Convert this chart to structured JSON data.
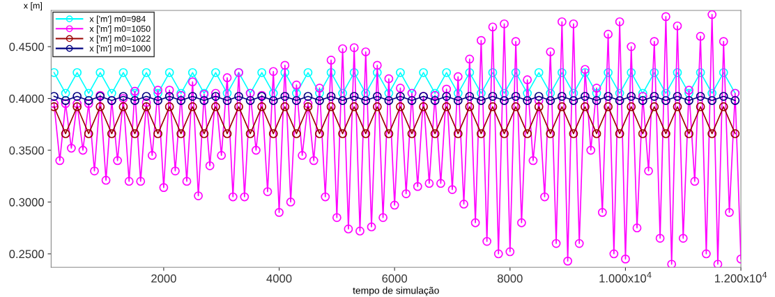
{
  "chart_data": {
    "type": "line",
    "xlabel": "tempo de simulação",
    "ylabel": "x [m]",
    "xlim": [
      50,
      12000
    ],
    "xticks": [
      2000,
      4000,
      6000,
      8000,
      {
        "value": 10000,
        "label": "1.000x10$^{4}$"
      },
      {
        "value": 12000,
        "label": "1.200x10$^{4}$"
      }
    ],
    "ylim": [
      0.237,
      0.485
    ],
    "yticks": [
      {
        "value": 0.25,
        "label": "0.2500"
      },
      {
        "value": 0.3,
        "label": "0.3000"
      },
      {
        "value": 0.35,
        "label": "0.3500"
      },
      {
        "value": 0.4,
        "label": "0.4000"
      },
      {
        "value": 0.45,
        "label": "0.4500"
      }
    ],
    "grid": false,
    "legend": "top left",
    "marker": "circle",
    "line_style": "solid",
    "series": [
      {
        "name": "x ['m'] m0=984",
        "color": "#00ffff",
        "x": [
          100,
          300,
          500,
          700,
          900,
          1100,
          1300,
          1500,
          1700,
          1900,
          2100,
          2300,
          2500,
          2700,
          2900,
          3100,
          3300,
          3500,
          3700,
          3900,
          4100,
          4300,
          4500,
          4700,
          4900,
          5100,
          5300,
          5500,
          5700,
          5900,
          6100,
          6300,
          6500,
          6700,
          6900,
          7100,
          7300,
          7500,
          7700,
          7900,
          8100,
          8300,
          8500,
          8700,
          8900,
          9100,
          9300,
          9500,
          9700,
          9900,
          10100,
          10300,
          10500,
          10700,
          10900,
          11100,
          11300,
          11500,
          11700,
          11900
        ],
        "values": [
          0.425,
          0.405,
          0.425,
          0.405,
          0.425,
          0.405,
          0.425,
          0.405,
          0.425,
          0.405,
          0.425,
          0.405,
          0.425,
          0.405,
          0.425,
          0.405,
          0.425,
          0.405,
          0.425,
          0.405,
          0.425,
          0.405,
          0.425,
          0.405,
          0.425,
          0.405,
          0.425,
          0.405,
          0.425,
          0.405,
          0.425,
          0.405,
          0.425,
          0.405,
          0.425,
          0.405,
          0.425,
          0.405,
          0.425,
          0.405,
          0.425,
          0.405,
          0.425,
          0.405,
          0.425,
          0.405,
          0.425,
          0.405,
          0.425,
          0.405,
          0.425,
          0.405,
          0.425,
          0.405,
          0.425,
          0.405,
          0.425,
          0.405,
          0.425,
          0.405
        ]
      },
      {
        "name": "x ['m'] m0=1050",
        "color": "#ff00ff",
        "x": [
          100,
          200,
          300,
          400,
          500,
          600,
          700,
          800,
          900,
          1000,
          1100,
          1200,
          1300,
          1400,
          1500,
          1600,
          1700,
          1800,
          1900,
          2000,
          2100,
          2200,
          2300,
          2400,
          2500,
          2600,
          2700,
          2800,
          2900,
          3000,
          3100,
          3200,
          3300,
          3400,
          3500,
          3600,
          3700,
          3800,
          3900,
          4000,
          4100,
          4200,
          4300,
          4400,
          4500,
          4600,
          4700,
          4800,
          4900,
          5000,
          5100,
          5200,
          5300,
          5400,
          5500,
          5600,
          5700,
          5800,
          5900,
          6000,
          6100,
          6200,
          6300,
          6400,
          6500,
          6600,
          6700,
          6800,
          6900,
          7000,
          7100,
          7200,
          7300,
          7400,
          7500,
          7600,
          7700,
          7800,
          7900,
          8000,
          8100,
          8200,
          8300,
          8400,
          8500,
          8600,
          8700,
          8800,
          8900,
          9000,
          9100,
          9200,
          9300,
          9400,
          9500,
          9600,
          9700,
          9800,
          9900,
          10000,
          10100,
          10200,
          10300,
          10400,
          10500,
          10600,
          10700,
          10800,
          10900,
          11000,
          11100,
          11200,
          11300,
          11400,
          11500,
          11600,
          11700,
          11800,
          11900,
          12000
        ],
        "values": [
          0.395,
          0.34,
          0.395,
          0.352,
          0.395,
          0.35,
          0.395,
          0.33,
          0.403,
          0.321,
          0.398,
          0.34,
          0.4,
          0.32,
          0.407,
          0.32,
          0.396,
          0.345,
          0.408,
          0.314,
          0.408,
          0.33,
          0.403,
          0.32,
          0.416,
          0.306,
          0.404,
          0.335,
          0.405,
          0.345,
          0.42,
          0.305,
          0.425,
          0.305,
          0.405,
          0.35,
          0.403,
          0.31,
          0.426,
          0.29,
          0.432,
          0.3,
          0.413,
          0.345,
          0.395,
          0.34,
          0.41,
          0.305,
          0.437,
          0.285,
          0.448,
          0.274,
          0.449,
          0.272,
          0.445,
          0.276,
          0.432,
          0.285,
          0.419,
          0.297,
          0.41,
          0.308,
          0.405,
          0.315,
          0.402,
          0.318,
          0.403,
          0.318,
          0.409,
          0.312,
          0.421,
          0.298,
          0.438,
          0.28,
          0.456,
          0.262,
          0.469,
          0.25,
          0.472,
          0.252,
          0.455,
          0.28,
          0.418,
          0.34,
          0.398,
          0.305,
          0.445,
          0.26,
          0.474,
          0.243,
          0.472,
          0.26,
          0.428,
          0.35,
          0.41,
          0.29,
          0.462,
          0.25,
          0.474,
          0.245,
          0.45,
          0.275,
          0.402,
          0.33,
          0.455,
          0.265,
          0.479,
          0.24,
          0.47,
          0.265,
          0.408,
          0.32,
          0.46,
          0.25,
          0.481,
          0.24,
          0.455,
          0.29,
          0.405,
          0.245
        ]
      },
      {
        "name": "x ['m'] m0=1022",
        "color": "#990000",
        "x": [
          100,
          300,
          500,
          700,
          900,
          1100,
          1300,
          1500,
          1700,
          1900,
          2100,
          2300,
          2500,
          2700,
          2900,
          3100,
          3300,
          3500,
          3700,
          3900,
          4100,
          4300,
          4500,
          4700,
          4900,
          5100,
          5300,
          5500,
          5700,
          5900,
          6100,
          6300,
          6500,
          6700,
          6900,
          7100,
          7300,
          7500,
          7700,
          7900,
          8100,
          8300,
          8500,
          8700,
          8900,
          9100,
          9300,
          9500,
          9700,
          9900,
          10100,
          10300,
          10500,
          10700,
          10900,
          11100,
          11300,
          11500,
          11700,
          11900
        ],
        "values": [
          0.392,
          0.366,
          0.392,
          0.366,
          0.392,
          0.366,
          0.392,
          0.366,
          0.392,
          0.366,
          0.392,
          0.366,
          0.392,
          0.366,
          0.392,
          0.366,
          0.392,
          0.366,
          0.392,
          0.366,
          0.392,
          0.366,
          0.392,
          0.366,
          0.392,
          0.366,
          0.392,
          0.366,
          0.392,
          0.366,
          0.392,
          0.366,
          0.392,
          0.366,
          0.392,
          0.366,
          0.392,
          0.366,
          0.392,
          0.366,
          0.392,
          0.366,
          0.392,
          0.366,
          0.392,
          0.366,
          0.392,
          0.366,
          0.392,
          0.366,
          0.392,
          0.366,
          0.392,
          0.366,
          0.392,
          0.366,
          0.392,
          0.366,
          0.392,
          0.366
        ]
      },
      {
        "name": "x ['m'] m0=1000",
        "color": "#000080",
        "x": [
          100,
          300,
          500,
          700,
          900,
          1100,
          1300,
          1500,
          1700,
          1900,
          2100,
          2300,
          2500,
          2700,
          2900,
          3100,
          3300,
          3500,
          3700,
          3900,
          4100,
          4300,
          4500,
          4700,
          4900,
          5100,
          5300,
          5500,
          5700,
          5900,
          6100,
          6300,
          6500,
          6700,
          6900,
          7100,
          7300,
          7500,
          7700,
          7900,
          8100,
          8300,
          8500,
          8700,
          8900,
          9100,
          9300,
          9500,
          9700,
          9900,
          10100,
          10300,
          10500,
          10700,
          10900,
          11100,
          11300,
          11500,
          11700,
          11900
        ],
        "values": [
          0.402,
          0.398,
          0.402,
          0.398,
          0.402,
          0.398,
          0.402,
          0.398,
          0.402,
          0.398,
          0.402,
          0.398,
          0.402,
          0.398,
          0.402,
          0.398,
          0.402,
          0.398,
          0.402,
          0.398,
          0.402,
          0.398,
          0.402,
          0.398,
          0.402,
          0.398,
          0.402,
          0.398,
          0.402,
          0.398,
          0.402,
          0.398,
          0.402,
          0.398,
          0.402,
          0.398,
          0.402,
          0.398,
          0.402,
          0.398,
          0.402,
          0.398,
          0.402,
          0.398,
          0.402,
          0.398,
          0.402,
          0.398,
          0.402,
          0.398,
          0.402,
          0.398,
          0.402,
          0.398,
          0.402,
          0.398,
          0.402,
          0.398,
          0.402,
          0.398
        ]
      }
    ]
  }
}
